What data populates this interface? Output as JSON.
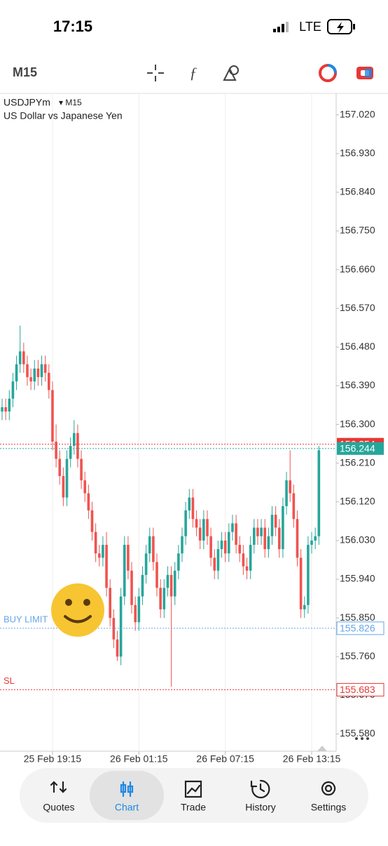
{
  "ui": {
    "status_time": "17:15",
    "network": "LTE",
    "timeframe": "M15",
    "symbol": "USDJPYm",
    "symbol_timeframe": "▾ M15",
    "description": "US Dollar vs Japanese Yen",
    "nav": [
      "Quotes",
      "Chart",
      "Trade",
      "History",
      "Settings"
    ]
  },
  "chart_data": {
    "type": "candlestick",
    "up_color": "#26a69a",
    "down_color": "#ef5350",
    "grid": "x",
    "categories": [
      null,
      null,
      null,
      null,
      null,
      null,
      null,
      null,
      null,
      null,
      null,
      null,
      null,
      null,
      "25 Feb 19:15",
      null,
      null,
      null,
      null,
      null,
      null,
      null,
      null,
      null,
      null,
      null,
      null,
      null,
      null,
      null,
      null,
      null,
      null,
      null,
      null,
      null,
      null,
      null,
      "26 Feb 01:15",
      null,
      null,
      null,
      null,
      null,
      null,
      null,
      null,
      null,
      null,
      null,
      null,
      null,
      null,
      null,
      null,
      null,
      null,
      null,
      null,
      null,
      null,
      null,
      "26 Feb 07:15",
      null,
      null,
      null,
      null,
      null,
      null,
      null,
      null,
      null,
      null,
      null,
      null,
      null,
      null,
      null,
      null,
      null,
      null,
      null,
      null,
      null,
      null,
      null,
      "26 Feb 13:15",
      null,
      null
    ],
    "open": [
      156.33,
      156.34,
      156.33,
      156.36,
      156.4,
      156.44,
      156.47,
      156.44,
      156.41,
      156.4,
      156.43,
      156.41,
      156.44,
      156.42,
      156.38,
      156.26,
      156.22,
      156.18,
      156.13,
      156.22,
      156.25,
      156.28,
      156.22,
      156.17,
      156.14,
      156.1,
      156.05,
      156.0,
      155.99,
      156.02,
      155.92,
      155.85,
      155.8,
      155.76,
      155.9,
      156.02,
      155.96,
      155.88,
      155.84,
      155.9,
      155.95,
      156.0,
      156.04,
      155.98,
      155.92,
      155.87,
      155.92,
      155.95,
      155.9,
      155.96,
      156.0,
      156.04,
      156.1,
      156.13,
      156.08,
      156.06,
      156.03,
      156.08,
      156.04,
      155.99,
      155.96,
      156.01,
      156.03,
      156.0,
      156.05,
      156.07,
      156.02,
      156.0,
      155.97,
      155.96,
      156.02,
      156.06,
      156.04,
      156.06,
      156.01,
      156.04,
      156.09,
      156.06,
      156.01,
      156.11,
      156.17,
      156.14,
      156.08,
      155.99,
      155.87,
      155.88,
      156.02,
      156.03,
      156.04
    ],
    "high": [
      156.36,
      156.36,
      156.38,
      156.42,
      156.46,
      156.53,
      156.49,
      156.46,
      156.43,
      156.45,
      156.45,
      156.46,
      156.46,
      156.44,
      156.4,
      156.3,
      156.24,
      156.2,
      156.24,
      156.27,
      156.31,
      156.3,
      156.24,
      156.19,
      156.16,
      156.12,
      156.07,
      156.02,
      156.04,
      156.05,
      155.94,
      155.87,
      155.82,
      155.92,
      156.04,
      156.04,
      155.98,
      155.9,
      155.92,
      155.97,
      156.02,
      156.06,
      156.06,
      156.0,
      155.94,
      155.94,
      155.97,
      155.97,
      155.98,
      156.02,
      156.06,
      156.12,
      156.15,
      156.15,
      156.1,
      156.08,
      156.1,
      156.1,
      156.06,
      156.01,
      156.03,
      156.05,
      156.05,
      156.07,
      156.09,
      156.09,
      156.04,
      156.02,
      155.99,
      156.04,
      156.08,
      156.08,
      156.08,
      156.08,
      156.06,
      156.11,
      156.11,
      156.08,
      156.13,
      156.19,
      156.24,
      156.16,
      156.1,
      156.01,
      155.9,
      156.04,
      156.05,
      156.06,
      156.25
    ],
    "low": [
      156.31,
      156.31,
      156.31,
      156.34,
      156.38,
      156.42,
      156.42,
      156.39,
      156.38,
      156.38,
      156.39,
      156.39,
      156.4,
      156.36,
      156.24,
      156.2,
      156.16,
      156.11,
      156.11,
      156.2,
      156.23,
      156.2,
      156.15,
      156.12,
      156.08,
      156.03,
      155.98,
      155.97,
      155.97,
      155.9,
      155.83,
      155.78,
      155.75,
      155.74,
      155.88,
      155.94,
      155.86,
      155.82,
      155.82,
      155.88,
      155.93,
      155.98,
      155.96,
      155.9,
      155.85,
      155.85,
      155.9,
      155.69,
      155.88,
      155.94,
      155.98,
      156.02,
      156.08,
      156.06,
      156.04,
      156.01,
      156.01,
      156.02,
      155.97,
      155.94,
      155.94,
      155.99,
      155.98,
      155.98,
      156.03,
      156.0,
      155.98,
      155.95,
      155.94,
      155.94,
      156.0,
      156.02,
      156.02,
      155.99,
      155.99,
      156.02,
      156.04,
      155.99,
      155.99,
      156.09,
      156.12,
      156.06,
      155.97,
      155.85,
      155.85,
      155.86,
      156.0,
      156.01,
      156.02
    ],
    "close": [
      156.34,
      156.33,
      156.36,
      156.4,
      156.44,
      156.47,
      156.44,
      156.41,
      156.4,
      156.43,
      156.41,
      156.44,
      156.42,
      156.38,
      156.26,
      156.22,
      156.18,
      156.13,
      156.22,
      156.25,
      156.28,
      156.22,
      156.17,
      156.14,
      156.1,
      156.05,
      156.0,
      155.99,
      156.02,
      155.92,
      155.85,
      155.8,
      155.76,
      155.9,
      156.02,
      155.96,
      155.88,
      155.84,
      155.9,
      155.95,
      156.0,
      156.04,
      155.98,
      155.92,
      155.87,
      155.92,
      155.95,
      155.9,
      155.96,
      156.0,
      156.04,
      156.1,
      156.13,
      156.08,
      156.06,
      156.03,
      156.08,
      156.04,
      155.99,
      155.96,
      156.01,
      156.03,
      156.0,
      156.05,
      156.07,
      156.02,
      156.0,
      155.97,
      155.96,
      156.02,
      156.06,
      156.04,
      156.06,
      156.01,
      156.04,
      156.09,
      156.06,
      156.01,
      156.11,
      156.17,
      156.14,
      156.08,
      155.99,
      155.87,
      155.88,
      156.02,
      156.03,
      156.04,
      156.24
    ],
    "ylim": [
      155.54,
      157.07
    ],
    "yticks": [
      {
        "value": 157.02,
        "label": "157.020"
      },
      {
        "value": 156.93,
        "label": "156.930"
      },
      {
        "value": 156.84,
        "label": "156.840"
      },
      {
        "value": 156.75,
        "label": "156.750"
      },
      {
        "value": 156.66,
        "label": "156.660"
      },
      {
        "value": 156.57,
        "label": "156.570"
      },
      {
        "value": 156.48,
        "label": "156.480"
      },
      {
        "value": 156.39,
        "label": "156.390"
      },
      {
        "value": 156.3,
        "label": "156.300"
      },
      {
        "value": 156.21,
        "label": "156.210"
      },
      {
        "value": 156.12,
        "label": "156.120"
      },
      {
        "value": 156.03,
        "label": "156.030"
      },
      {
        "value": 155.94,
        "label": "155.940"
      },
      {
        "value": 155.85,
        "label": "155.850"
      },
      {
        "value": 155.76,
        "label": "155.760"
      },
      {
        "value": 155.67,
        "label": "155.670"
      },
      {
        "value": 155.58,
        "label": "155.580"
      }
    ],
    "levels": [
      {
        "value": 156.254,
        "color": "#e53935"
      },
      {
        "value": 156.244,
        "color": "#26a69a"
      },
      {
        "name": "BUY LIMIT",
        "value": 155.826,
        "color": "#64a6e8"
      },
      {
        "name": "SL",
        "value": 155.683,
        "color": "#e53935"
      }
    ]
  }
}
